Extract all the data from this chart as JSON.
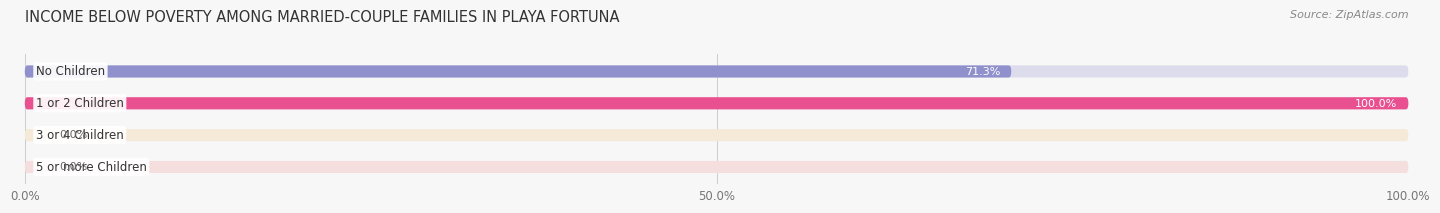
{
  "title": "INCOME BELOW POVERTY AMONG MARRIED-COUPLE FAMILIES IN PLAYA FORTUNA",
  "source": "Source: ZipAtlas.com",
  "categories": [
    "No Children",
    "1 or 2 Children",
    "3 or 4 Children",
    "5 or more Children"
  ],
  "values": [
    71.3,
    100.0,
    0.0,
    0.0
  ],
  "bar_colors": [
    "#9090cc",
    "#e85090",
    "#f0b870",
    "#e89090"
  ],
  "bg_bar_colors": [
    "#dcdcec",
    "#f5d0e0",
    "#f5ead8",
    "#f5dede"
  ],
  "background_color": "#f7f7f7",
  "xlim": [
    0,
    100
  ],
  "xticks": [
    0,
    50,
    100
  ],
  "xticklabels": [
    "0.0%",
    "50.0%",
    "100.0%"
  ],
  "label_fontsize": 8.5,
  "title_fontsize": 10.5,
  "source_fontsize": 8,
  "value_fontsize": 8
}
